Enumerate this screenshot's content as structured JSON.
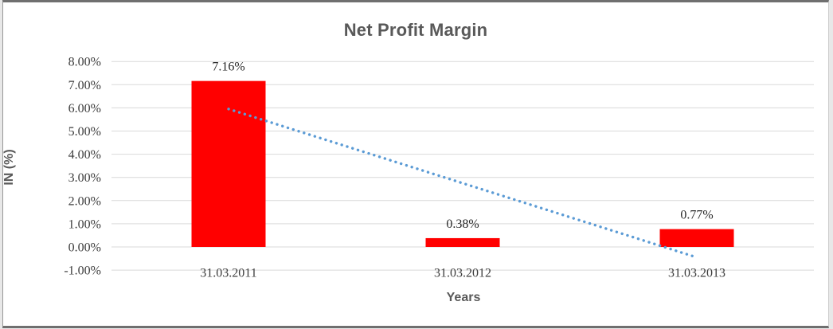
{
  "chart": {
    "title": "Net Profit Margin",
    "xlabel": "Years",
    "ylabel": "IN (%)"
  },
  "chart_data": {
    "type": "bar",
    "title": "Net Profit Margin",
    "xlabel": "Years",
    "ylabel": "IN (%)",
    "categories": [
      "31.03.2011",
      "31.03.2012",
      "31.03.2013"
    ],
    "values": [
      7.16,
      0.38,
      0.77
    ],
    "data_labels": [
      "7.16%",
      "0.38%",
      "0.77%"
    ],
    "ylim": [
      -1,
      8
    ],
    "ytick_step": 1,
    "ytick_labels": [
      "-1.00%",
      "0.00%",
      "1.00%",
      "2.00%",
      "3.00%",
      "4.00%",
      "5.00%",
      "6.00%",
      "7.00%",
      "8.00%"
    ],
    "grid": true,
    "legend_position": "none",
    "bar_color": "#FF0000",
    "gridline_color": "#D9D9D9",
    "trendline": {
      "type": "linear",
      "style": "dotted",
      "color": "#5B9BD5",
      "start": {
        "category_index": 0,
        "value": 5.95
      },
      "end": {
        "category_index": 2,
        "value": -0.45
      }
    }
  }
}
